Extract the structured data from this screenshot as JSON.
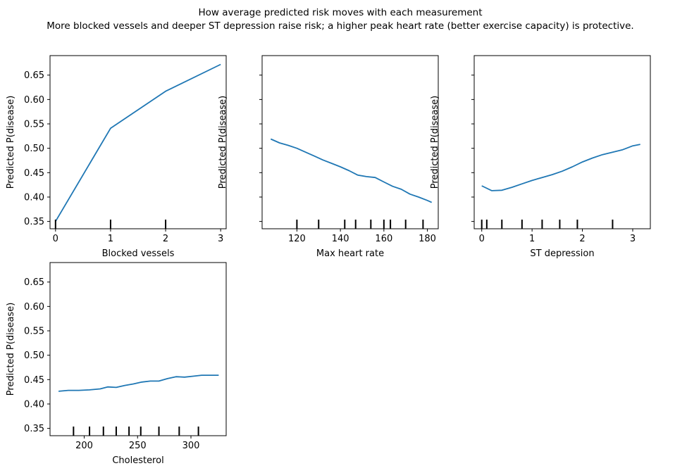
{
  "figure": {
    "title": "How average predicted risk moves with each measurement",
    "subtitle": "More blocked vessels and deeper ST depression raise risk; a higher peak heart rate (better exercise capacity) is protective."
  },
  "chart_data": [
    {
      "type": "line",
      "xlabel": "Blocked vessels",
      "ylabel": "Predicted P(disease)",
      "xlim": [
        -0.1,
        3.1
      ],
      "ylim": [
        0.335,
        0.69
      ],
      "xticks": [
        0,
        1,
        2,
        3
      ],
      "yticks": [
        0.35,
        0.4,
        0.45,
        0.5,
        0.55,
        0.6,
        0.65
      ],
      "show_yticklabels": true,
      "line_color": "#1f77b4",
      "series": [
        {
          "x": [
            0,
            1,
            2,
            3
          ],
          "y": [
            0.35,
            0.541,
            0.617,
            0.672
          ]
        }
      ],
      "rug": [
        0,
        1,
        2
      ]
    },
    {
      "type": "line",
      "xlabel": "Max heart rate",
      "ylabel": "Predicted P(disease)",
      "xlim": [
        104,
        185
      ],
      "ylim": [
        0.335,
        0.69
      ],
      "xticks": [
        120,
        140,
        160,
        180
      ],
      "yticks": [
        0.35,
        0.4,
        0.45,
        0.5,
        0.55,
        0.6,
        0.65
      ],
      "show_yticklabels": false,
      "line_color": "#1f77b4",
      "series": [
        {
          "x": [
            108,
            112,
            116,
            120,
            124,
            128,
            132,
            136,
            140,
            144,
            148,
            152,
            156,
            160,
            164,
            168,
            172,
            176,
            180,
            182
          ],
          "y": [
            0.519,
            0.511,
            0.506,
            0.5,
            0.492,
            0.484,
            0.476,
            0.469,
            0.462,
            0.454,
            0.445,
            0.442,
            0.44,
            0.431,
            0.422,
            0.416,
            0.406,
            0.4,
            0.393,
            0.389
          ]
        }
      ],
      "rug": [
        120,
        130,
        142,
        147,
        154,
        160,
        163,
        170,
        178
      ]
    },
    {
      "type": "line",
      "xlabel": "ST depression",
      "ylabel": "Predicted P(disease)",
      "xlim": [
        -0.15,
        3.35
      ],
      "ylim": [
        0.335,
        0.69
      ],
      "xticks": [
        0,
        1,
        2,
        3
      ],
      "yticks": [
        0.35,
        0.4,
        0.45,
        0.5,
        0.55,
        0.6,
        0.65
      ],
      "show_yticklabels": false,
      "line_color": "#1f77b4",
      "series": [
        {
          "x": [
            0,
            0.2,
            0.4,
            0.6,
            0.8,
            1.0,
            1.2,
            1.4,
            1.6,
            1.8,
            2.0,
            2.2,
            2.4,
            2.6,
            2.8,
            3.0,
            3.15
          ],
          "y": [
            0.423,
            0.413,
            0.414,
            0.42,
            0.427,
            0.434,
            0.44,
            0.446,
            0.453,
            0.462,
            0.472,
            0.48,
            0.487,
            0.492,
            0.497,
            0.505,
            0.508
          ]
        }
      ],
      "rug": [
        0,
        0.1,
        0.4,
        0.8,
        1.2,
        1.55,
        1.9,
        2.6
      ]
    },
    {
      "type": "line",
      "xlabel": "Cholesterol",
      "ylabel": "Predicted P(disease)",
      "xlim": [
        168,
        333
      ],
      "ylim": [
        0.335,
        0.69
      ],
      "xticks": [
        200,
        250,
        300
      ],
      "yticks": [
        0.35,
        0.4,
        0.45,
        0.5,
        0.55,
        0.6,
        0.65
      ],
      "show_yticklabels": true,
      "line_color": "#1f77b4",
      "series": [
        {
          "x": [
            176,
            185,
            195,
            205,
            215,
            222,
            230,
            238,
            246,
            254,
            262,
            270,
            278,
            286,
            294,
            302,
            310,
            318,
            326
          ],
          "y": [
            0.426,
            0.428,
            0.428,
            0.429,
            0.431,
            0.435,
            0.434,
            0.438,
            0.441,
            0.445,
            0.447,
            0.447,
            0.452,
            0.456,
            0.455,
            0.457,
            0.459,
            0.459,
            0.459
          ]
        }
      ],
      "rug": [
        190,
        205,
        218,
        230,
        242,
        253,
        270,
        289,
        307
      ]
    }
  ]
}
